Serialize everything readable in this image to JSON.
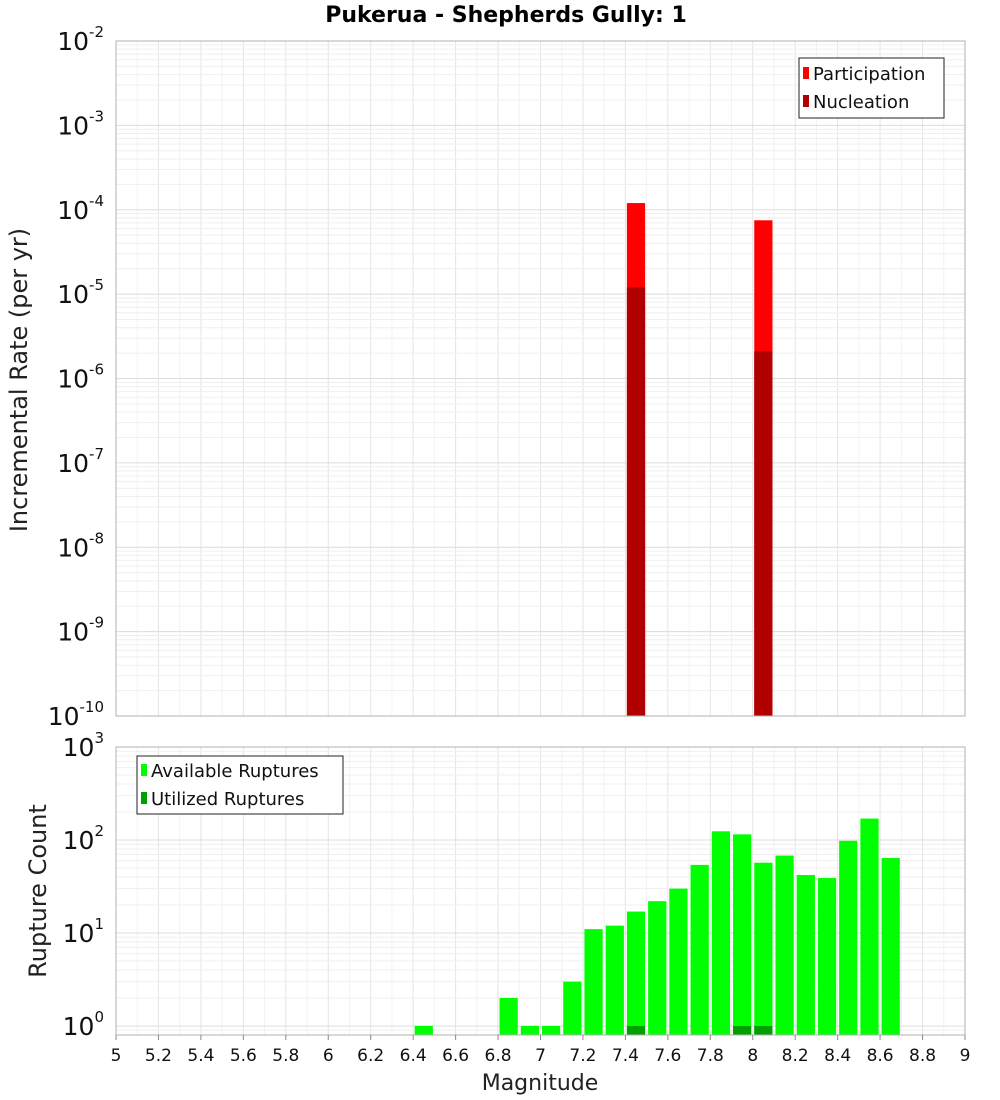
{
  "chart_data": [
    {
      "type": "bar",
      "title": "Pukerua - Shepherds Gully: 1",
      "ylabel": "Incremental Rate (per yr)",
      "yscale": "log",
      "ylim": [
        1e-10,
        0.01
      ],
      "xlim": [
        5,
        9
      ],
      "bin_width": 0.1,
      "grid": true,
      "legend_position": "top-right",
      "series": [
        {
          "name": "Participation",
          "color": "#ff0000",
          "x": [
            7.45,
            8.05
          ],
          "values": [
            0.00012,
            7.5e-05
          ]
        },
        {
          "name": "Nucleation",
          "color": "#b00000",
          "x": [
            7.45,
            8.05
          ],
          "values": [
            1.2e-05,
            2.1e-06
          ]
        }
      ],
      "y_ticks": [
        {
          "base": "10",
          "exp": "-10"
        },
        {
          "base": "10",
          "exp": "-9"
        },
        {
          "base": "10",
          "exp": "-8"
        },
        {
          "base": "10",
          "exp": "-7"
        },
        {
          "base": "10",
          "exp": "-6"
        },
        {
          "base": "10",
          "exp": "-5"
        },
        {
          "base": "10",
          "exp": "-4"
        },
        {
          "base": "10",
          "exp": "-3"
        },
        {
          "base": "10",
          "exp": "-2"
        }
      ]
    },
    {
      "type": "bar",
      "xlabel": "Magnitude",
      "ylabel": "Rupture Count",
      "yscale": "log",
      "ylim": [
        0.8,
        1000
      ],
      "xlim": [
        5,
        9
      ],
      "bin_width": 0.1,
      "grid": true,
      "legend_position": "top-left",
      "series": [
        {
          "name": "Available Ruptures",
          "color": "#00ff00",
          "x": [
            6.45,
            6.85,
            6.95,
            7.05,
            7.15,
            7.25,
            7.35,
            7.45,
            7.55,
            7.65,
            7.75,
            7.85,
            7.95,
            8.05,
            8.15,
            8.25,
            8.35,
            8.45,
            8.55,
            8.65
          ],
          "values": [
            1,
            2,
            1,
            1,
            3,
            11,
            12,
            17,
            22,
            30,
            54,
            124,
            115,
            57,
            68,
            42,
            39,
            98,
            170,
            64
          ]
        },
        {
          "name": "Utilized Ruptures",
          "color": "#00a000",
          "x": [
            7.45,
            7.95,
            8.05
          ],
          "values": [
            1,
            1,
            1
          ]
        }
      ],
      "x_ticks": [
        "5",
        "5.2",
        "5.4",
        "5.6",
        "5.8",
        "6",
        "6.2",
        "6.4",
        "6.6",
        "6.8",
        "7",
        "7.2",
        "7.4",
        "7.6",
        "7.8",
        "8",
        "8.2",
        "8.4",
        "8.6",
        "8.8",
        "9"
      ],
      "y_ticks": [
        {
          "base": "10",
          "exp": "0"
        },
        {
          "base": "10",
          "exp": "1"
        },
        {
          "base": "10",
          "exp": "2"
        },
        {
          "base": "10",
          "exp": "3"
        }
      ]
    }
  ]
}
